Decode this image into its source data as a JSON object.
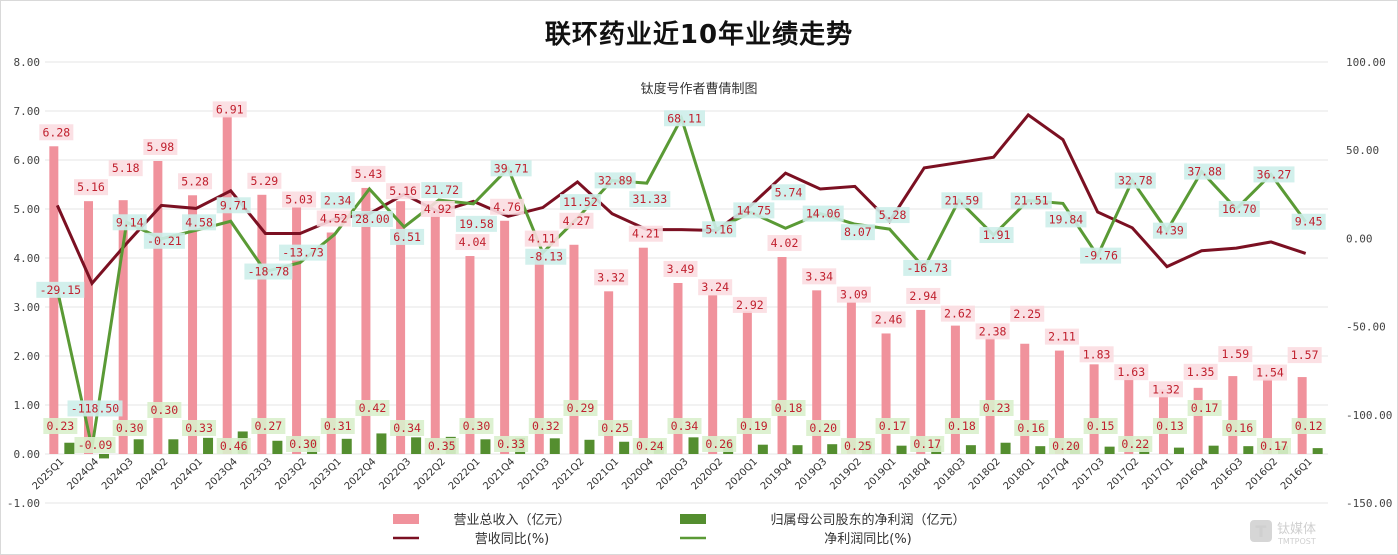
{
  "chart_data": {
    "type": "bar",
    "title": "联环药业近10年业绩走势",
    "subtitle": "钛度号作者曹倩制图",
    "categories": [
      "2025Q1",
      "2024Q4",
      "2024Q3",
      "2024Q2",
      "2024Q1",
      "2023Q4",
      "2023Q3",
      "2023Q2",
      "2023Q1",
      "2022Q4",
      "2022Q3",
      "2022Q2",
      "2022Q1",
      "2021Q4",
      "2021Q3",
      "2021Q2",
      "2021Q1",
      "2020Q4",
      "2020Q3",
      "2020Q2",
      "2020Q1",
      "2019Q4",
      "2019Q3",
      "2019Q2",
      "2019Q1",
      "2018Q4",
      "2018Q3",
      "2018Q2",
      "2018Q1",
      "2017Q4",
      "2017Q3",
      "2017Q2",
      "2017Q1",
      "2016Q4",
      "2016Q3",
      "2016Q2",
      "2016Q1"
    ],
    "series": [
      {
        "name": "营业总收入（亿元）",
        "type": "bar",
        "axis": "left",
        "color": "#f0929c",
        "labels_shown": true,
        "label_format": "fixed2",
        "values": [
          6.28,
          5.16,
          5.18,
          5.98,
          5.28,
          6.91,
          5.29,
          5.03,
          4.52,
          5.43,
          5.16,
          4.92,
          4.04,
          4.76,
          4.11,
          4.27,
          3.32,
          4.21,
          3.49,
          3.24,
          2.92,
          4.02,
          3.34,
          3.09,
          2.46,
          2.94,
          2.62,
          2.38,
          2.25,
          2.11,
          1.83,
          1.63,
          1.32,
          1.35,
          1.59,
          1.54,
          1.57
        ]
      },
      {
        "name": "归属母公司股东的净利润（亿元）",
        "type": "bar",
        "axis": "left",
        "color": "#548e2f",
        "labels_shown": true,
        "label_format": "fixed2",
        "values": [
          0.23,
          -0.09,
          0.3,
          0.3,
          0.33,
          0.46,
          0.27,
          0.3,
          0.31,
          0.42,
          0.34,
          0.35,
          0.3,
          0.33,
          0.32,
          0.29,
          0.25,
          0.24,
          0.34,
          0.26,
          0.19,
          0.18,
          0.2,
          0.25,
          0.17,
          0.17,
          0.18,
          0.23,
          0.16,
          0.2,
          0.15,
          0.22,
          0.13,
          0.17,
          0.16,
          0.17,
          0.12
        ]
      },
      {
        "name": "营收同比(%)",
        "type": "line",
        "axis": "right",
        "color": "#7b1022",
        "labels_shown": false,
        "values": [
          18.7,
          -25.5,
          -2.8,
          18.7,
          17.0,
          27.0,
          2.8,
          2.8,
          11.0,
          14.0,
          25.0,
          15.0,
          21.0,
          12.5,
          17.5,
          32.0,
          14.0,
          5.0,
          5.0,
          4.5,
          18.7,
          37.0,
          28.0,
          29.5,
          9.6,
          40.0,
          43.0,
          46.0,
          70.0,
          56.0,
          15.0,
          6.0,
          -16.0,
          -7.0,
          -5.5,
          -2.0,
          -8.5
        ]
      },
      {
        "name": "净利润同比(%)",
        "type": "line",
        "axis": "right",
        "color": "#5a9a35",
        "labels_shown": true,
        "label_format": "fixed2",
        "values": [
          -29.15,
          -118.5,
          9.14,
          -0.21,
          4.58,
          9.71,
          -18.78,
          -13.73,
          2.34,
          28.0,
          6.51,
          21.72,
          19.58,
          39.71,
          -8.13,
          11.52,
          32.89,
          31.33,
          68.11,
          5.16,
          14.75,
          5.74,
          14.06,
          8.07,
          5.28,
          -16.73,
          21.59,
          1.91,
          21.51,
          19.84,
          -9.76,
          32.78,
          4.39,
          37.88,
          16.7,
          36.27,
          9.45
        ]
      }
    ],
    "left_axis": {
      "min": -1,
      "max": 8,
      "step": 1,
      "tick_labels": [
        "-1.00",
        "0.00",
        "1.00",
        "2.00",
        "3.00",
        "4.00",
        "5.00",
        "6.00",
        "7.00",
        "8.00"
      ]
    },
    "right_axis": {
      "min": -150,
      "max": 100,
      "step": 50,
      "tick_labels": [
        "-150.00",
        "-100.00",
        "-50.00",
        "0.00",
        "50.00",
        "100.00"
      ]
    },
    "grid": true,
    "legend_position": "bottom",
    "colors": {
      "revenue_label_bg": "#fbdde1",
      "profit_label_bg": "#d9efcc",
      "yoy_label_bg": "#cdeeea",
      "label_text": "#c0202e",
      "grid": "#e6e6e6"
    }
  },
  "watermark": {
    "brand": "钛媒体",
    "sub": "TMTPOST",
    "logo_glyph": "T"
  }
}
